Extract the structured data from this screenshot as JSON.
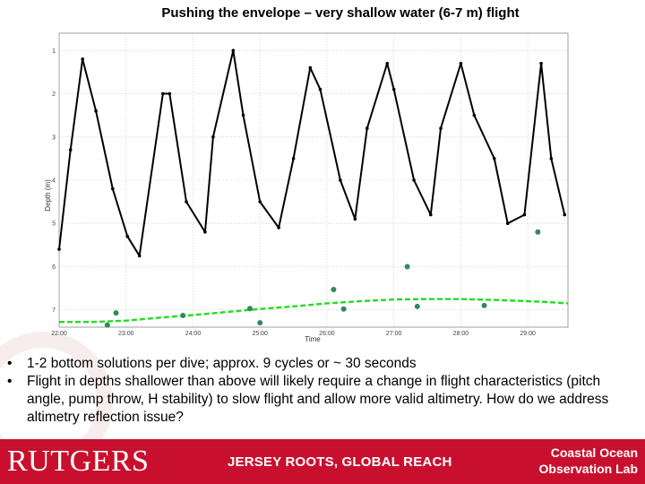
{
  "slide": {
    "title": "Pushing the envelope – very shallow water (6-7 m) flight"
  },
  "bullets": [
    "1-2 bottom solutions per dive; approx. 9 cycles or ~ 30 seconds",
    "Flight in depths shallower than above will likely require a change in flight characteristics (pitch angle, pump throw, H stability) to slow flight and allow more valid altimetry.  How do we address altimetry reflection issue?"
  ],
  "footer": {
    "logo": "RUTGERS",
    "tagline": "JERSEY ROOTS, GLOBAL REACH",
    "org_line1": "Coastal Ocean",
    "org_line2": "Observation Lab"
  },
  "colors": {
    "footer_red": "#c8102e",
    "depth_line": "#000000",
    "bottom_line": "#22dd22",
    "bottom_markers": "#2e8b57"
  },
  "chart_data": {
    "type": "line",
    "title": "",
    "xlabel": "Time",
    "ylabel": "Depth (m)",
    "x_tick_labels": [
      "22:00",
      "23:00",
      "24:00",
      "25:00",
      "26:00",
      "27:00",
      "28:00",
      "29:00"
    ],
    "xlim": [
      0,
      7.6
    ],
    "y_tick_labels": [
      "1",
      "2",
      "3",
      "4",
      "5",
      "6",
      "7"
    ],
    "ylim": [
      0.6,
      7.4
    ],
    "y_inverted": true,
    "grid": true,
    "series": [
      {
        "kind": "depth_profile",
        "style": "black line with dot markers",
        "x": [
          0.0,
          0.17,
          0.35,
          0.55,
          0.8,
          1.02,
          1.2,
          1.55,
          1.65,
          1.9,
          2.18,
          2.3,
          2.6,
          2.75,
          3.0,
          3.28,
          3.5,
          3.75,
          3.9,
          4.2,
          4.42,
          4.6,
          4.9,
          5.0,
          5.3,
          5.55,
          5.7,
          6.0,
          6.2,
          6.5,
          6.7,
          6.95,
          7.2,
          7.35,
          7.55
        ],
        "y": [
          5.6,
          3.3,
          1.2,
          2.4,
          4.2,
          5.3,
          5.75,
          2.0,
          2.0,
          4.5,
          5.2,
          3.0,
          1.0,
          2.5,
          4.5,
          5.1,
          3.5,
          1.4,
          1.9,
          4.0,
          4.9,
          2.8,
          1.3,
          1.9,
          4.0,
          4.8,
          2.8,
          1.3,
          2.5,
          3.5,
          5.0,
          4.8,
          1.3,
          3.5,
          4.8
        ]
      },
      {
        "kind": "bottom_estimate",
        "style": "green dashed line",
        "x": [
          0.0,
          0.5,
          1.0,
          1.5,
          2.0,
          2.5,
          3.0,
          3.5,
          4.0,
          4.5,
          5.0,
          5.5,
          6.0,
          6.5,
          7.0,
          7.3,
          7.6
        ],
        "y": [
          7.28,
          7.28,
          7.25,
          7.18,
          7.12,
          7.05,
          6.98,
          6.92,
          6.85,
          6.8,
          6.76,
          6.75,
          6.75,
          6.77,
          6.8,
          6.82,
          6.85
        ]
      },
      {
        "kind": "bottom_solutions",
        "style": "green filled circle markers",
        "x": [
          0.72,
          0.85,
          1.85,
          2.85,
          3.0,
          4.1,
          4.25,
          5.2,
          5.35,
          6.35,
          7.15
        ],
        "y": [
          7.35,
          7.07,
          7.13,
          6.97,
          7.3,
          6.53,
          6.98,
          6.0,
          6.92,
          6.9,
          5.2
        ]
      }
    ]
  }
}
